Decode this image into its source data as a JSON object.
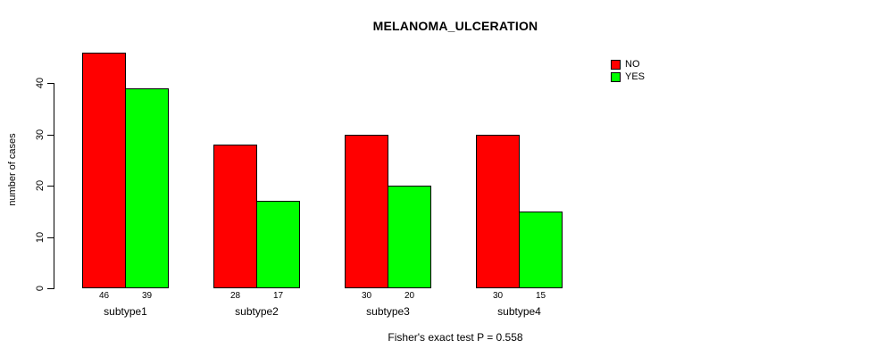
{
  "chart_data": {
    "type": "bar",
    "title": "MELANOMA_ULCERATION",
    "ylabel": "number of cases",
    "xlabel": "",
    "categories": [
      "subtype1",
      "subtype2",
      "subtype3",
      "subtype4"
    ],
    "series": [
      {
        "name": "NO",
        "color": "#ff0000",
        "values": [
          46,
          28,
          30,
          30
        ]
      },
      {
        "name": "YES",
        "color": "#00ff00",
        "values": [
          39,
          17,
          20,
          15
        ]
      }
    ],
    "yticks": [
      0,
      10,
      20,
      30,
      40
    ],
    "ylim": [
      0,
      46
    ],
    "grid": false,
    "bar_value_labels": true,
    "legend_position": "top-right",
    "legend_labels": [
      "NO",
      "YES"
    ],
    "caption": "Fisher's exact test P = 0.558"
  }
}
